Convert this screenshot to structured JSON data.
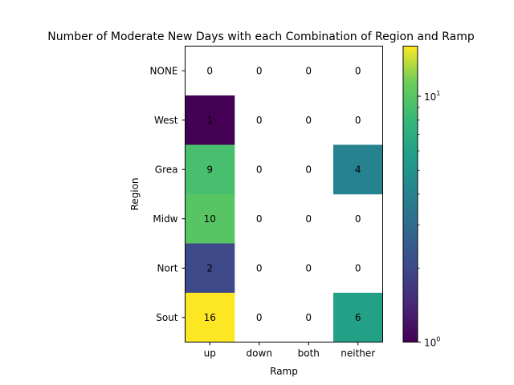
{
  "chart_data": {
    "type": "heatmap",
    "title": "Number of Moderate New Days with each Combination of Region and Ramp",
    "xlabel": "Ramp",
    "ylabel": "Region",
    "x_categories": [
      "up",
      "down",
      "both",
      "neither"
    ],
    "y_categories": [
      "NONE",
      "West",
      "Grea",
      "Midw",
      "Nort",
      "Sout"
    ],
    "values": [
      [
        0,
        0,
        0,
        0
      ],
      [
        1,
        0,
        0,
        0
      ],
      [
        9,
        0,
        0,
        4
      ],
      [
        10,
        0,
        0,
        0
      ],
      [
        2,
        0,
        0,
        0
      ],
      [
        16,
        0,
        0,
        6
      ]
    ],
    "colorbar": {
      "scale": "log",
      "colormap": "viridis",
      "range": [
        1,
        16
      ],
      "tick_labels": [
        "10^0",
        "10^1"
      ],
      "tick_values": [
        1,
        10
      ]
    },
    "zero_cells_masked": true
  }
}
